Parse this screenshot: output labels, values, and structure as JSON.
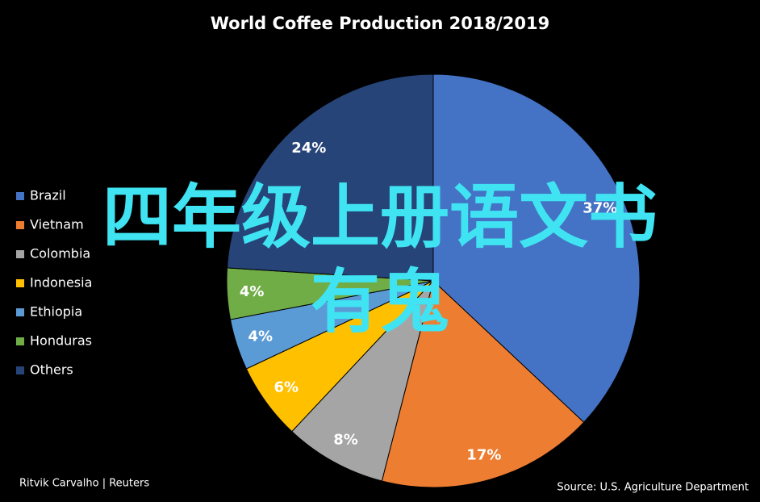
{
  "chart_data": {
    "type": "pie",
    "title": "World Coffee Production 2018/2019",
    "categories": [
      "Brazil",
      "Vietnam",
      "Colombia",
      "Indonesia",
      "Ethiopia",
      "Honduras",
      "Others"
    ],
    "values": [
      37,
      17,
      8,
      6,
      4,
      4,
      24
    ],
    "value_labels": [
      "37%",
      "17%",
      "8%",
      "6%",
      "4%",
      "4%",
      "24%"
    ],
    "colors": [
      "#4472c4",
      "#ed7d31",
      "#a5a5a5",
      "#ffc000",
      "#5b9bd5",
      "#70ad47",
      "#264478"
    ],
    "legend": "left",
    "credit": "Ritvik Carvalho | Reuters",
    "source": "Source: U.S. Agriculture Department"
  },
  "overlay": {
    "line1": "四年级上册语文书",
    "line2": "有鬼"
  }
}
